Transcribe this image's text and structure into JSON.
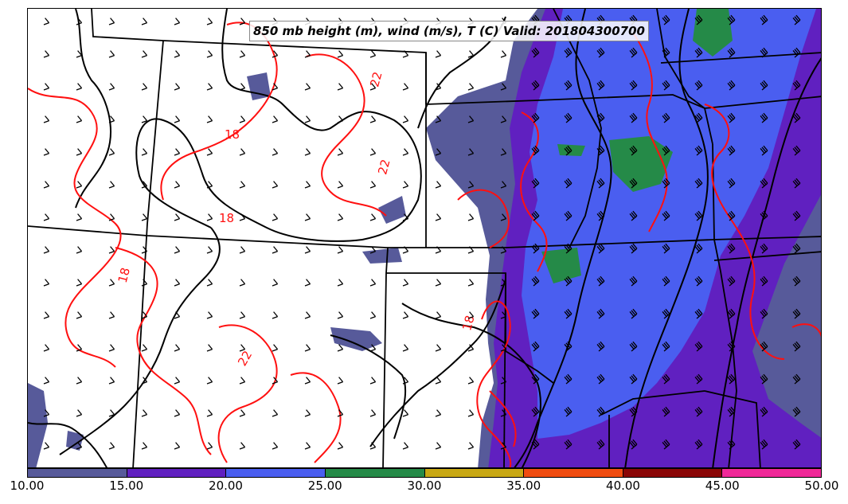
{
  "title": "850 mb height (m), wind (m/s), T (C) Valid: 201804300700",
  "contour_labels": [
    "18",
    "22"
  ],
  "colorbar": {
    "ticks": [
      "10.00",
      "15.00",
      "20.00",
      "25.00",
      "30.00",
      "35.00",
      "40.00",
      "45.00",
      "50.00"
    ],
    "colors": [
      "#575a9a",
      "#6020c0",
      "#4a5ef0",
      "#258a48",
      "#c8a814",
      "#f04c10",
      "#8a0606",
      "#f02898"
    ]
  },
  "colors": {
    "temperature_contour": "#ff1010",
    "height_contour": "#000000",
    "wind_barb": "#000000",
    "state_border": "#000000"
  }
}
